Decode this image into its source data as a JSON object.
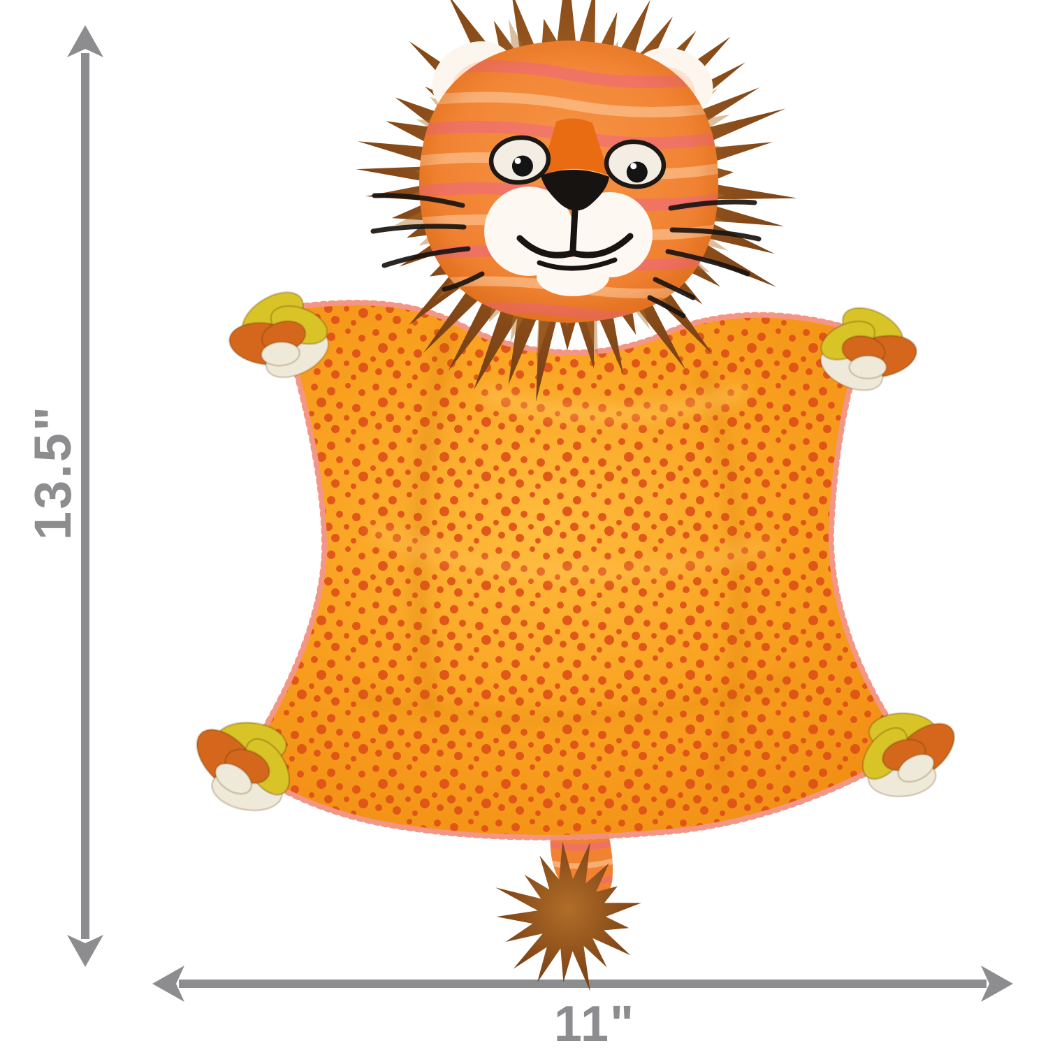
{
  "dimensions": {
    "height": "13.5\"",
    "width": "11\""
  },
  "product_image": {
    "subject": "plush-lion-toy"
  },
  "colors": {
    "dimension_gray": "#8d8d8f",
    "mane_dark": "#6f3a12",
    "mane_brown": "#8d4f1b",
    "mane_light": "#b06e28",
    "face_orange": "#f08232",
    "stripe_pink": "#ee5f90",
    "stripe_light": "#ffd2a8",
    "bridge_orange": "#e96c12",
    "muzzle_white": "#fdf8f2",
    "nose_black": "#171310",
    "body_light": "#ffbc3d",
    "body_orange": "#f9a01f",
    "body_dark": "#ee8810",
    "dot_red": "#dd4f17",
    "fringe_pink": "#f2907e",
    "rope_yellow": "#d9c427",
    "rope_orange": "#d4671c",
    "rope_white": "#efe9da"
  }
}
